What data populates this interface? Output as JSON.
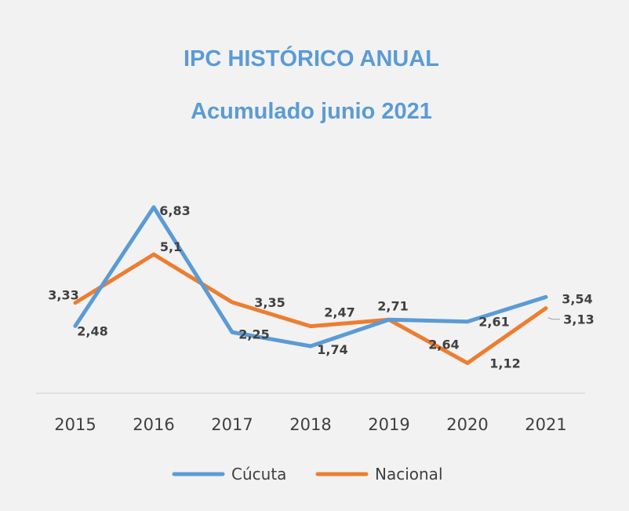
{
  "chart_data": {
    "type": "line",
    "title": "IPC HISTÓRICO ANUAL",
    "subtitle": "Acumulado junio 2021",
    "categories": [
      "2015",
      "2016",
      "2017",
      "2018",
      "2019",
      "2020",
      "2021"
    ],
    "series": [
      {
        "name": "Cúcuta",
        "color": "#5b9bd5",
        "values": [
          2.48,
          6.83,
          2.25,
          1.74,
          2.71,
          2.64,
          3.54
        ],
        "labels": [
          "2,48",
          "6,83",
          "2,25",
          "1,74",
          "2,71",
          "2,64",
          "3,54"
        ]
      },
      {
        "name": "Nacional",
        "color": "#ed7d31",
        "values": [
          3.33,
          5.1,
          3.35,
          2.47,
          2.71,
          1.12,
          3.13
        ],
        "labels": [
          "3,33",
          "5,1",
          "3,35",
          "2,47",
          "",
          "1,12",
          "3,13"
        ]
      }
    ],
    "extra_labels": [
      "2,61"
    ],
    "ylim": [
      0,
      8
    ],
    "grid": false,
    "legend": "bottom",
    "title_color": "#5b9bd5"
  }
}
